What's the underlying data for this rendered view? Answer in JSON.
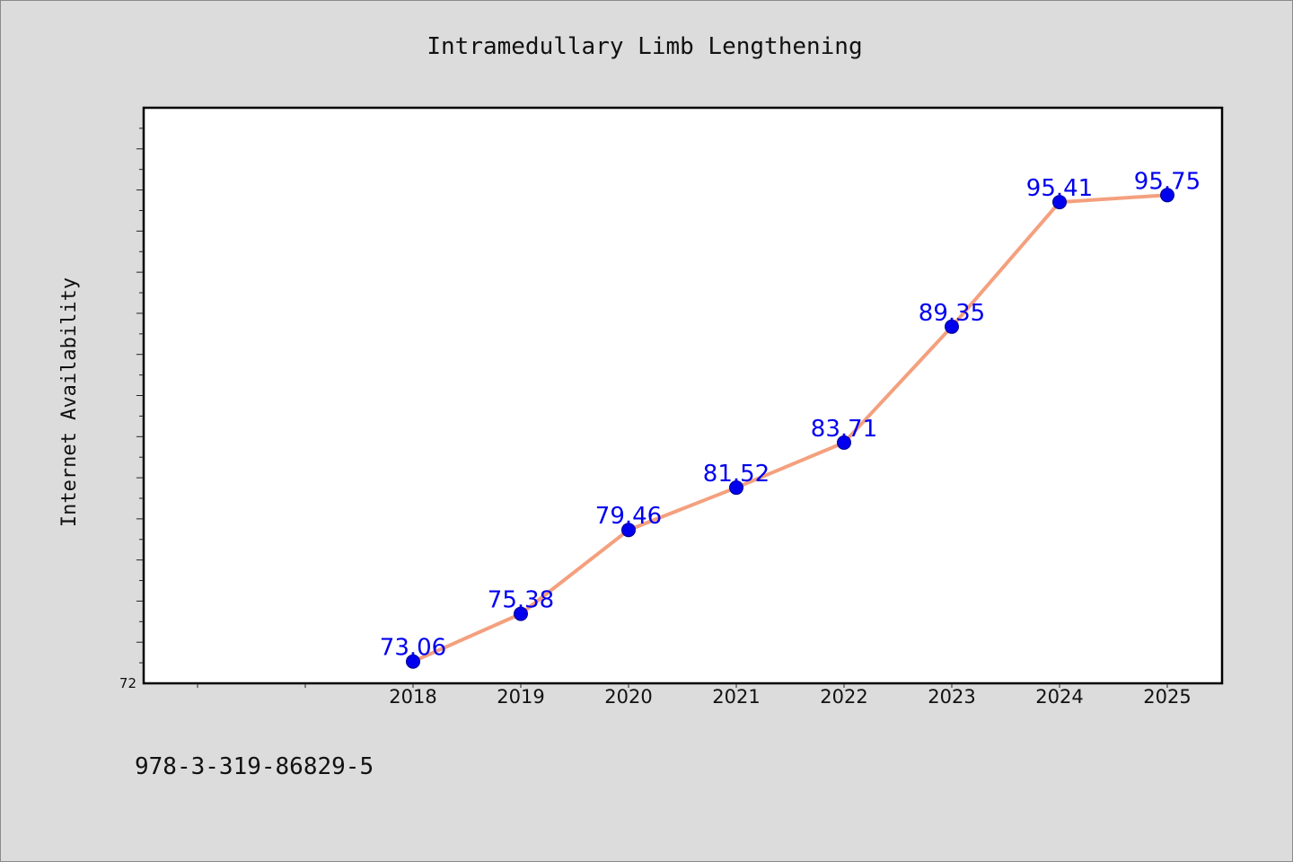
{
  "chart_data": {
    "type": "line",
    "title": "Intramedullary Limb Lengthening",
    "xlabel": "",
    "ylabel": "Internet Availability",
    "x": [
      "2018",
      "2019",
      "2020",
      "2021",
      "2022",
      "2023",
      "2024",
      "2025"
    ],
    "values": [
      73.06,
      75.38,
      79.46,
      81.52,
      83.71,
      89.35,
      95.41,
      95.75
    ],
    "data_labels": [
      "73.06",
      "75.38",
      "79.46",
      "81.52",
      "83.71",
      "89.35",
      "95.41",
      "95.75"
    ],
    "ylim": [
      72,
      100
    ],
    "y_tick_labels": [
      "72"
    ],
    "grid": false,
    "legend": "none",
    "colors": {
      "line": "#f4a07e",
      "marker": "#0000ee",
      "marker_edge": "#00008b",
      "label": "#0000ee",
      "plot_background": "#ffffff",
      "figure_background": "#dcdcdc"
    }
  },
  "footer": {
    "isbn": "978-3-319-86829-5"
  }
}
